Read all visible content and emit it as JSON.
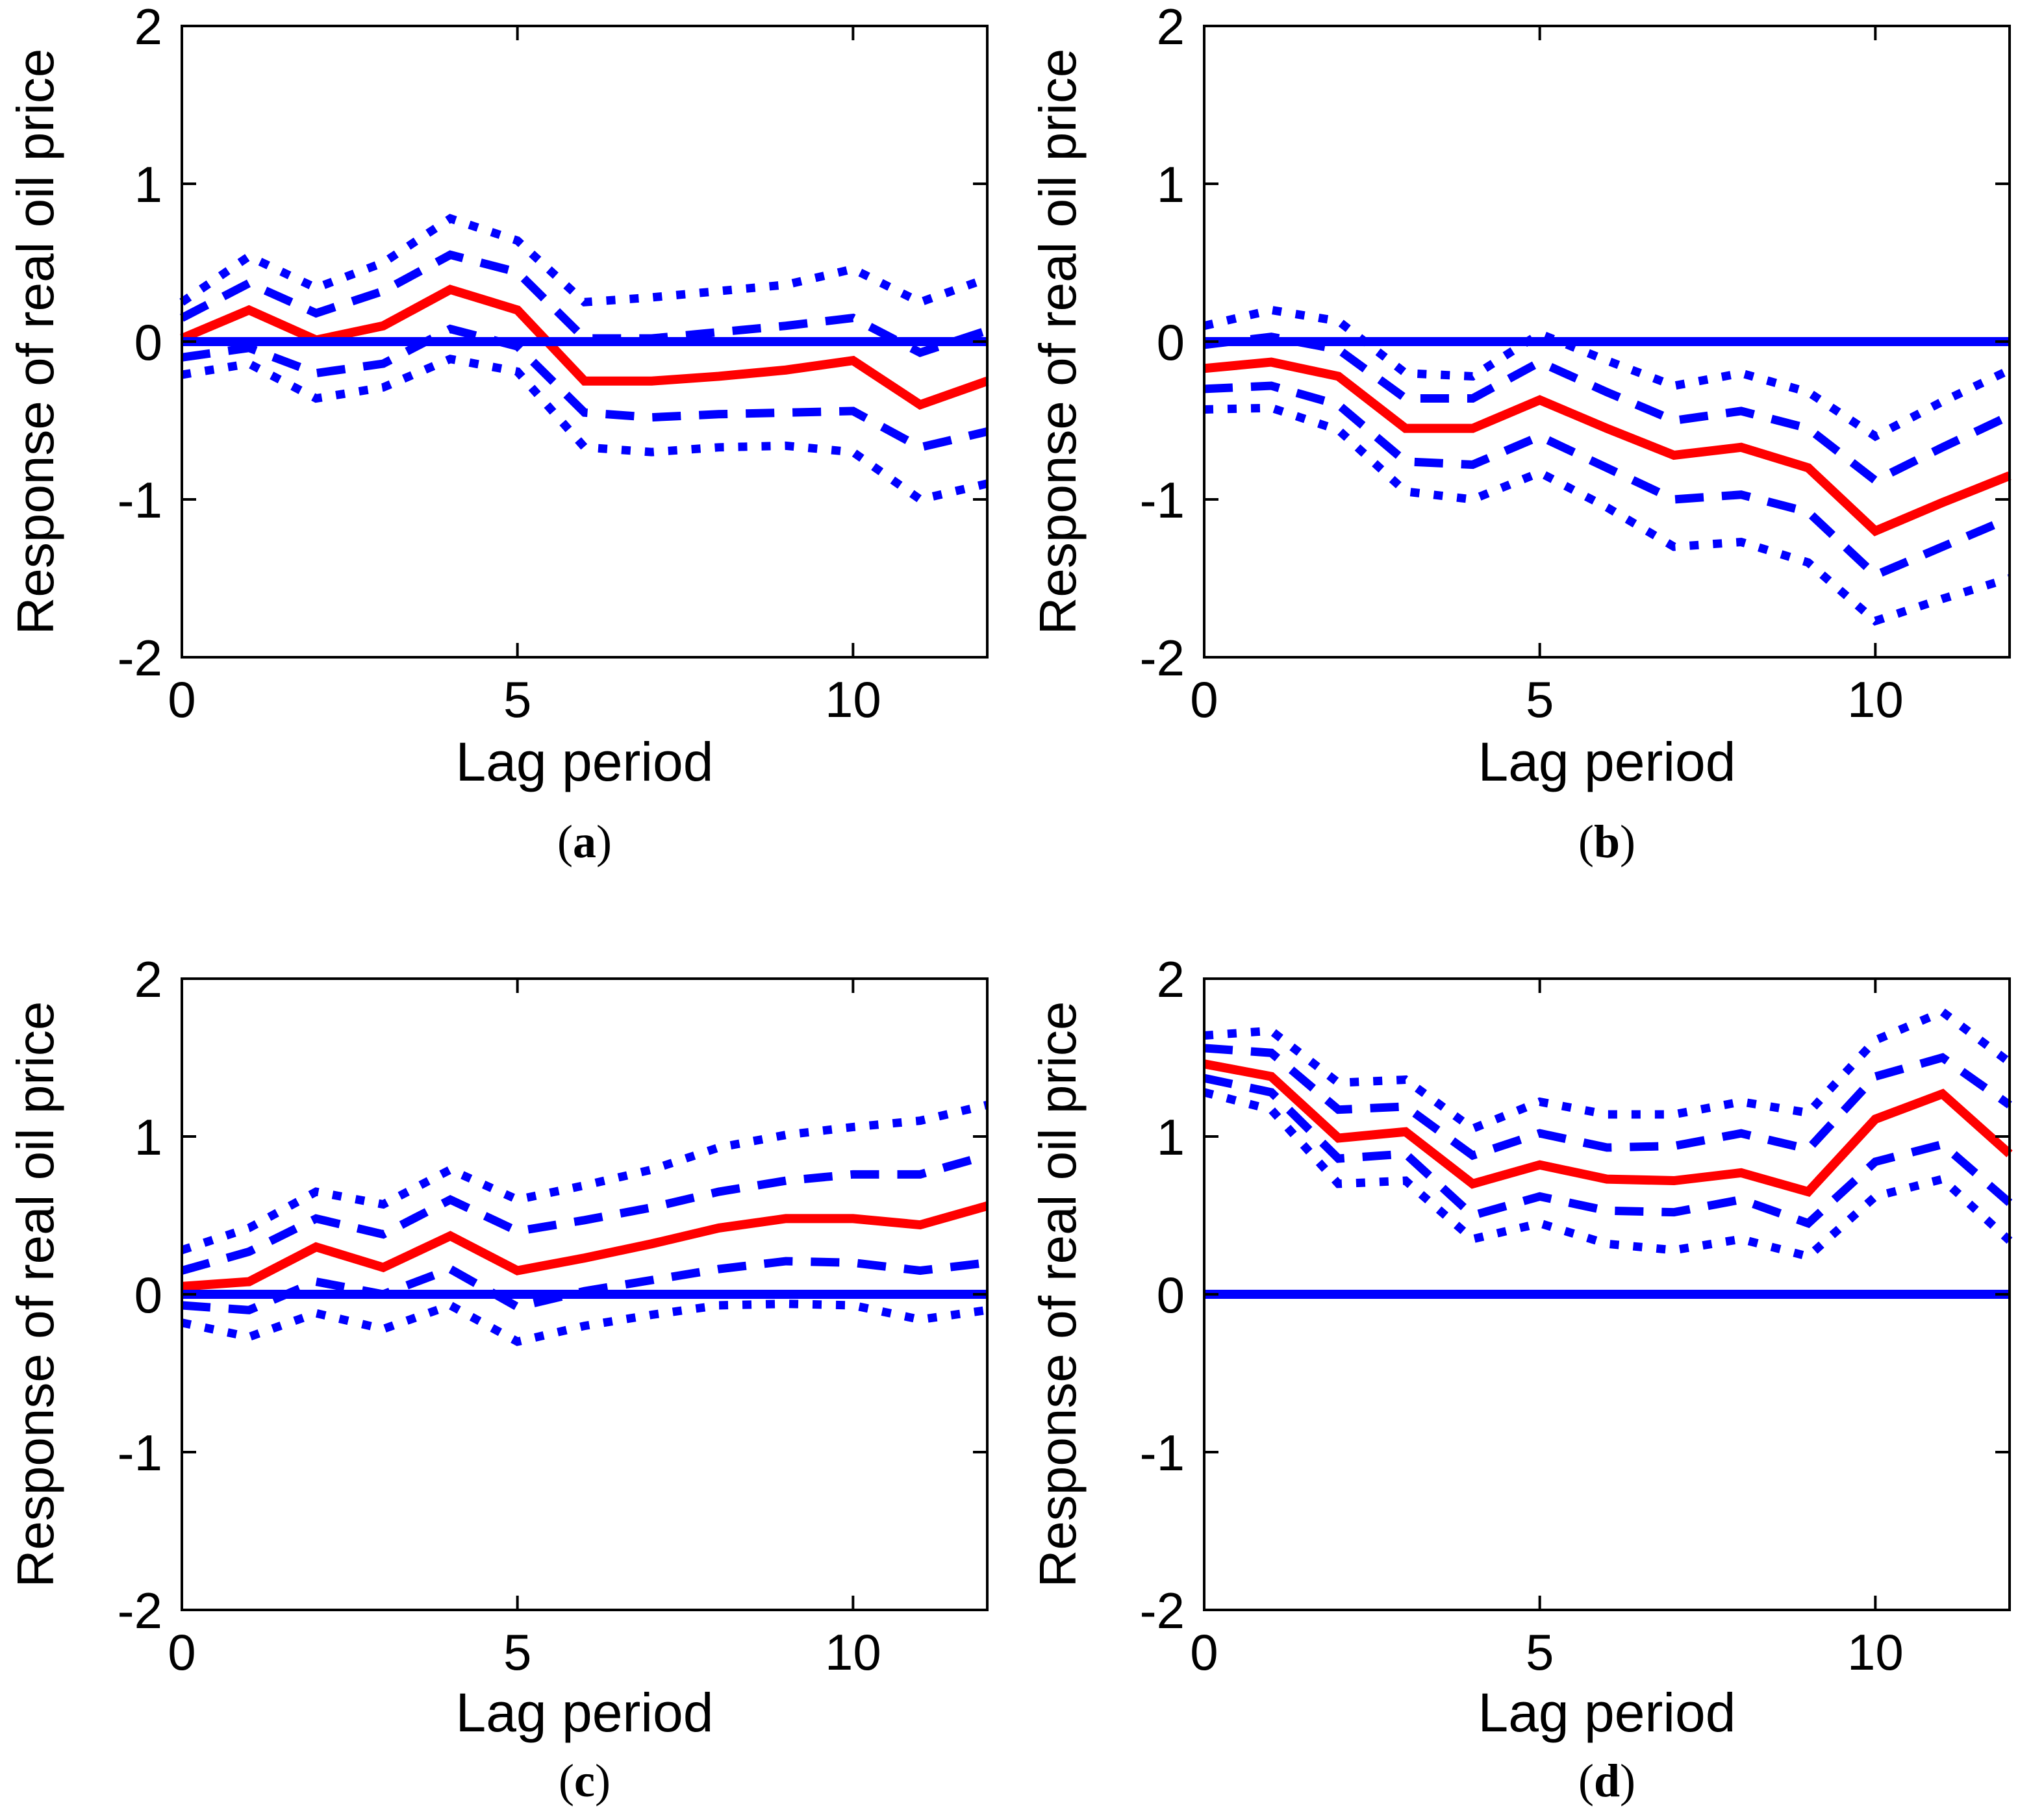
{
  "figure": {
    "background": "#ffffff",
    "axis_color": "#000000",
    "estimate_color": "#ff0000",
    "band_color": "#0000ff",
    "zero_line_color": "#0000ff"
  },
  "chart_data": [
    {
      "type": "line",
      "caption_open": "(",
      "caption_letter": "a",
      "caption_close": ")",
      "xlabel": "Lag period",
      "ylabel": "Response of real oil price",
      "x": [
        0,
        1,
        2,
        3,
        4,
        5,
        6,
        7,
        8,
        9,
        10,
        11,
        12
      ],
      "xticks": [
        0,
        5,
        10
      ],
      "yticks": [
        -2,
        -1,
        0,
        1,
        2
      ],
      "xlim": [
        0,
        12
      ],
      "ylim": [
        -2,
        2
      ],
      "grid": false,
      "legend": "none",
      "series": [
        {
          "name": "outer-upper-band",
          "style": "dotted",
          "color": "#0000ff",
          "values": [
            0.25,
            0.54,
            0.34,
            0.5,
            0.78,
            0.64,
            0.25,
            0.28,
            0.32,
            0.36,
            0.46,
            0.25,
            0.4
          ]
        },
        {
          "name": "inner-upper-band",
          "style": "dashed",
          "color": "#0000ff",
          "values": [
            0.15,
            0.37,
            0.18,
            0.32,
            0.55,
            0.44,
            0.02,
            0.02,
            0.06,
            0.1,
            0.15,
            -0.07,
            0.07
          ]
        },
        {
          "name": "inner-lower-band",
          "style": "dashed",
          "color": "#0000ff",
          "values": [
            -0.1,
            -0.04,
            -0.2,
            -0.14,
            0.08,
            -0.03,
            -0.45,
            -0.48,
            -0.46,
            -0.45,
            -0.44,
            -0.67,
            -0.57
          ]
        },
        {
          "name": "outer-lower-band",
          "style": "dotted",
          "color": "#0000ff",
          "values": [
            -0.21,
            -0.14,
            -0.36,
            -0.29,
            -0.11,
            -0.19,
            -0.67,
            -0.7,
            -0.67,
            -0.66,
            -0.7,
            -1.0,
            -0.9
          ]
        },
        {
          "name": "point-estimate",
          "style": "solid",
          "color": "#ff0000",
          "values": [
            0.02,
            0.2,
            0.01,
            0.1,
            0.33,
            0.2,
            -0.25,
            -0.25,
            -0.22,
            -0.18,
            -0.12,
            -0.4,
            -0.25
          ]
        },
        {
          "name": "zero-line",
          "style": "solid",
          "color": "#0000ff",
          "values": [
            0,
            0,
            0,
            0,
            0,
            0,
            0,
            0,
            0,
            0,
            0,
            0,
            0
          ]
        }
      ]
    },
    {
      "type": "line",
      "caption_open": "(",
      "caption_letter": "b",
      "caption_close": ")",
      "xlabel": "Lag period",
      "ylabel": "Response of real oil price",
      "x": [
        0,
        1,
        2,
        3,
        4,
        5,
        6,
        7,
        8,
        9,
        10,
        11,
        12
      ],
      "xticks": [
        0,
        5,
        10
      ],
      "yticks": [
        -2,
        -1,
        0,
        1,
        2
      ],
      "xlim": [
        0,
        12
      ],
      "ylim": [
        -2,
        2
      ],
      "grid": false,
      "legend": "none",
      "series": [
        {
          "name": "outer-upper-band",
          "style": "dotted",
          "color": "#0000ff",
          "values": [
            0.1,
            0.2,
            0.13,
            -0.2,
            -0.22,
            0.05,
            -0.12,
            -0.28,
            -0.2,
            -0.32,
            -0.6,
            -0.38,
            -0.18
          ]
        },
        {
          "name": "inner-upper-band",
          "style": "dashed",
          "color": "#0000ff",
          "values": [
            -0.02,
            0.03,
            -0.05,
            -0.36,
            -0.36,
            -0.13,
            -0.32,
            -0.5,
            -0.44,
            -0.55,
            -0.88,
            -0.67,
            -0.47
          ]
        },
        {
          "name": "inner-lower-band",
          "style": "dashed",
          "color": "#0000ff",
          "values": [
            -0.3,
            -0.28,
            -0.4,
            -0.76,
            -0.78,
            -0.6,
            -0.8,
            -1.0,
            -0.97,
            -1.08,
            -1.48,
            -1.3,
            -1.12
          ]
        },
        {
          "name": "outer-lower-band",
          "style": "dotted",
          "color": "#0000ff",
          "values": [
            -0.43,
            -0.42,
            -0.56,
            -0.95,
            -1.0,
            -0.83,
            -1.05,
            -1.3,
            -1.27,
            -1.4,
            -1.77,
            -1.63,
            -1.5
          ]
        },
        {
          "name": "point-estimate",
          "style": "solid",
          "color": "#ff0000",
          "values": [
            -0.17,
            -0.13,
            -0.22,
            -0.55,
            -0.55,
            -0.37,
            -0.55,
            -0.72,
            -0.67,
            -0.8,
            -1.2,
            -1.02,
            -0.85
          ]
        },
        {
          "name": "zero-line",
          "style": "solid",
          "color": "#0000ff",
          "values": [
            0,
            0,
            0,
            0,
            0,
            0,
            0,
            0,
            0,
            0,
            0,
            0,
            0
          ]
        }
      ]
    },
    {
      "type": "line",
      "caption_open": "(",
      "caption_letter": "c",
      "caption_close": ")",
      "xlabel": "Lag period",
      "ylabel": "Response of real oil price",
      "x": [
        0,
        1,
        2,
        3,
        4,
        5,
        6,
        7,
        8,
        9,
        10,
        11,
        12
      ],
      "xticks": [
        0,
        5,
        10
      ],
      "yticks": [
        -2,
        -1,
        0,
        1,
        2
      ],
      "xlim": [
        0,
        12
      ],
      "ylim": [
        -2,
        2
      ],
      "grid": false,
      "legend": "none",
      "series": [
        {
          "name": "outer-upper-band",
          "style": "dotted",
          "color": "#0000ff",
          "values": [
            0.28,
            0.42,
            0.65,
            0.57,
            0.79,
            0.6,
            0.69,
            0.79,
            0.93,
            1.01,
            1.06,
            1.1,
            1.2
          ]
        },
        {
          "name": "inner-upper-band",
          "style": "dashed",
          "color": "#0000ff",
          "values": [
            0.15,
            0.27,
            0.48,
            0.38,
            0.6,
            0.4,
            0.47,
            0.55,
            0.65,
            0.72,
            0.76,
            0.76,
            0.88
          ]
        },
        {
          "name": "inner-lower-band",
          "style": "dashed",
          "color": "#0000ff",
          "values": [
            -0.07,
            -0.1,
            0.08,
            0.0,
            0.16,
            -0.08,
            0.02,
            0.09,
            0.16,
            0.21,
            0.2,
            0.15,
            0.2
          ]
        },
        {
          "name": "outer-lower-band",
          "style": "dotted",
          "color": "#0000ff",
          "values": [
            -0.18,
            -0.27,
            -0.12,
            -0.22,
            -0.07,
            -0.3,
            -0.2,
            -0.13,
            -0.07,
            -0.06,
            -0.07,
            -0.16,
            -0.1
          ]
        },
        {
          "name": "point-estimate",
          "style": "solid",
          "color": "#ff0000",
          "values": [
            0.05,
            0.08,
            0.3,
            0.17,
            0.37,
            0.15,
            0.23,
            0.32,
            0.42,
            0.48,
            0.48,
            0.44,
            0.56
          ]
        },
        {
          "name": "zero-line",
          "style": "solid",
          "color": "#0000ff",
          "values": [
            0,
            0,
            0,
            0,
            0,
            0,
            0,
            0,
            0,
            0,
            0,
            0,
            0
          ]
        }
      ]
    },
    {
      "type": "line",
      "caption_open": "(",
      "caption_letter": "d",
      "caption_close": ")",
      "xlabel": "Lag period",
      "ylabel": "Response of real oil price",
      "x": [
        0,
        1,
        2,
        3,
        4,
        5,
        6,
        7,
        8,
        9,
        10,
        11,
        12
      ],
      "xticks": [
        0,
        5,
        10
      ],
      "yticks": [
        -2,
        -1,
        0,
        1,
        2
      ],
      "xlim": [
        0,
        12
      ],
      "ylim": [
        -2,
        2
      ],
      "grid": false,
      "legend": "none",
      "series": [
        {
          "name": "outer-upper-band",
          "style": "dotted",
          "color": "#0000ff",
          "values": [
            1.64,
            1.67,
            1.34,
            1.36,
            1.05,
            1.22,
            1.14,
            1.14,
            1.22,
            1.15,
            1.61,
            1.79,
            1.47
          ]
        },
        {
          "name": "inner-upper-band",
          "style": "dashed",
          "color": "#0000ff",
          "values": [
            1.56,
            1.53,
            1.17,
            1.19,
            0.88,
            1.02,
            0.93,
            0.94,
            1.02,
            0.92,
            1.38,
            1.5,
            1.2
          ]
        },
        {
          "name": "inner-lower-band",
          "style": "dashed",
          "color": "#0000ff",
          "values": [
            1.37,
            1.28,
            0.86,
            0.89,
            0.5,
            0.62,
            0.53,
            0.52,
            0.6,
            0.45,
            0.84,
            0.95,
            0.58
          ]
        },
        {
          "name": "outer-lower-band",
          "style": "dotted",
          "color": "#0000ff",
          "values": [
            1.28,
            1.17,
            0.7,
            0.72,
            0.35,
            0.45,
            0.32,
            0.28,
            0.35,
            0.24,
            0.62,
            0.73,
            0.34
          ]
        },
        {
          "name": "point-estimate",
          "style": "solid",
          "color": "#ff0000",
          "values": [
            1.46,
            1.38,
            0.99,
            1.03,
            0.7,
            0.82,
            0.73,
            0.72,
            0.77,
            0.65,
            1.11,
            1.27,
            0.89
          ]
        },
        {
          "name": "zero-line",
          "style": "solid",
          "color": "#0000ff",
          "values": [
            0,
            0,
            0,
            0,
            0,
            0,
            0,
            0,
            0,
            0,
            0,
            0,
            0
          ]
        }
      ]
    }
  ]
}
